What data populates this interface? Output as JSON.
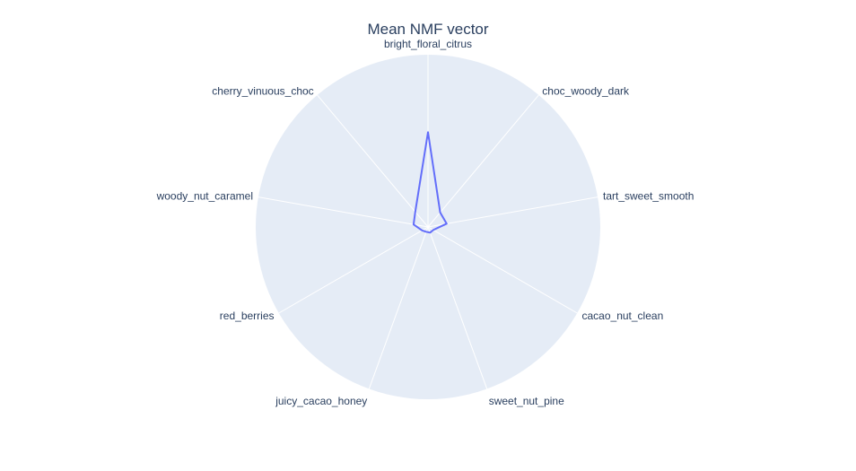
{
  "chart_data": {
    "type": "radar",
    "title": "Mean NMF vector",
    "categories": [
      "bright_floral_citrus",
      "choc_woody_dark",
      "tart_sweet_smooth",
      "cacao_nut_clean",
      "sweet_nut_pine",
      "juicy_cacao_honey",
      "red_berries",
      "woody_nut_caramel",
      "cherry_vinuous_choc"
    ],
    "series": [
      {
        "values": [
          0.55,
          0.11,
          0.11,
          0.035,
          0.035,
          0.03,
          0.04,
          0.085,
          0.115
        ]
      }
    ],
    "radial_range": [
      0,
      1
    ],
    "grid": true,
    "legend": "none"
  },
  "colors": {
    "background": "#ffffff",
    "polar_background": "#e5ecf6",
    "grid": "#ffffff",
    "series_line": "#636efa",
    "text": "#2a3f5f"
  }
}
